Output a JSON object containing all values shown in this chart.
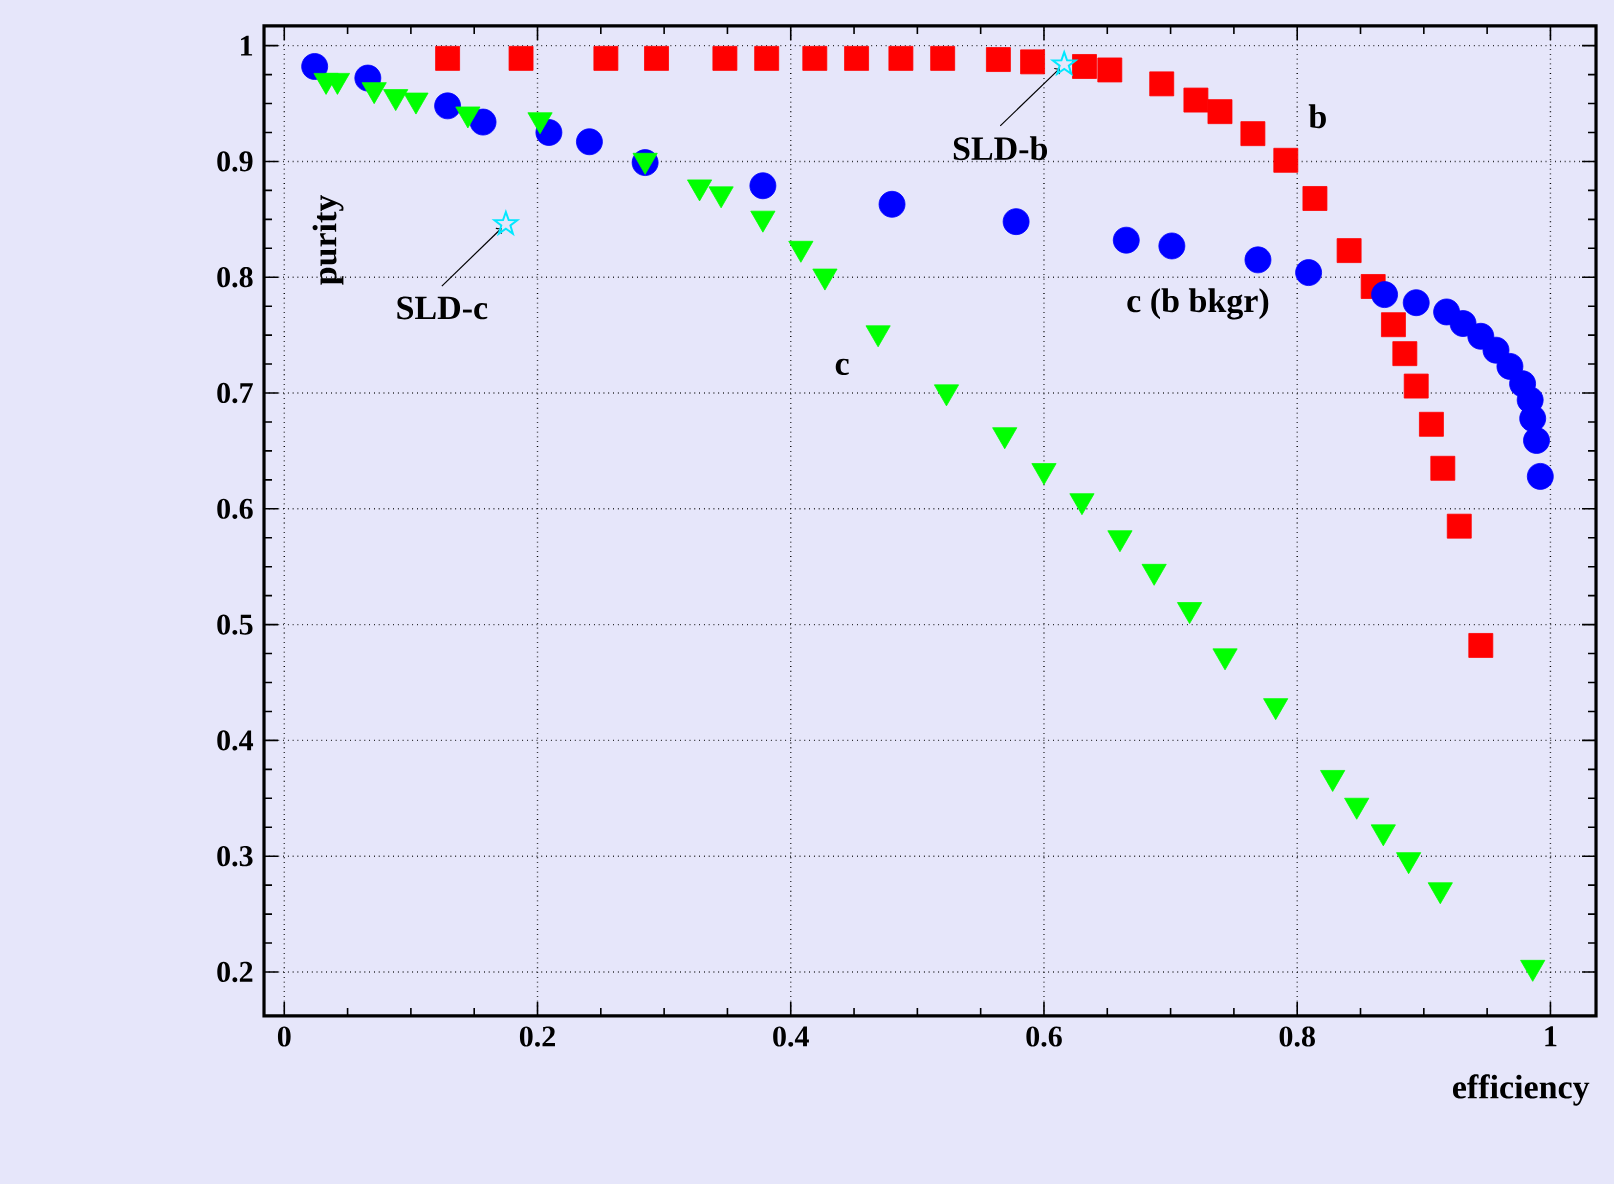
{
  "chart_data": {
    "type": "scatter",
    "xlabel": "efficiency",
    "ylabel": "purity",
    "xlim": [
      -0.016,
      1.036
    ],
    "ylim": [
      0.162,
      1.017
    ],
    "xticks": [
      0,
      0.2,
      0.4,
      0.6,
      0.8,
      1
    ],
    "yticks": [
      0.2,
      0.3,
      0.4,
      0.5,
      0.6,
      0.7,
      0.8,
      0.9,
      1
    ],
    "grid": true,
    "series": [
      {
        "name": "b",
        "color": "#ff0000",
        "marker": "square",
        "x": [
          0.129,
          0.187,
          0.254,
          0.294,
          0.348,
          0.381,
          0.419,
          0.452,
          0.487,
          0.52,
          0.564,
          0.591,
          0.632,
          0.652,
          0.693,
          0.72,
          0.739,
          0.765,
          0.791,
          0.814,
          0.841,
          0.86,
          0.876,
          0.885,
          0.894,
          0.906,
          0.915,
          0.928,
          0.945
        ],
        "values": [
          0.989,
          0.989,
          0.989,
          0.989,
          0.989,
          0.989,
          0.989,
          0.989,
          0.989,
          0.989,
          0.988,
          0.986,
          0.982,
          0.979,
          0.967,
          0.953,
          0.943,
          0.924,
          0.901,
          0.868,
          0.823,
          0.792,
          0.759,
          0.734,
          0.706,
          0.673,
          0.635,
          0.585,
          0.482
        ]
      },
      {
        "name": "c (b bkgr)",
        "color": "#0000ff",
        "marker": "circle",
        "x": [
          0.024,
          0.066,
          0.129,
          0.157,
          0.209,
          0.241,
          0.285,
          0.378,
          0.48,
          0.578,
          0.665,
          0.701,
          0.769,
          0.809,
          0.869,
          0.894,
          0.918,
          0.931,
          0.945,
          0.957,
          0.968,
          0.978,
          0.984,
          0.986,
          0.989,
          0.992
        ],
        "values": [
          0.982,
          0.972,
          0.948,
          0.934,
          0.925,
          0.917,
          0.899,
          0.879,
          0.863,
          0.848,
          0.832,
          0.827,
          0.815,
          0.804,
          0.785,
          0.778,
          0.77,
          0.76,
          0.749,
          0.737,
          0.723,
          0.708,
          0.694,
          0.678,
          0.659,
          0.628
        ]
      },
      {
        "name": "c",
        "color": "#00ff00",
        "marker": "triangle",
        "x": [
          0.033,
          0.042,
          0.071,
          0.088,
          0.104,
          0.145,
          0.202,
          0.285,
          0.328,
          0.345,
          0.378,
          0.408,
          0.427,
          0.469,
          0.523,
          0.569,
          0.6,
          0.63,
          0.66,
          0.687,
          0.715,
          0.743,
          0.783,
          0.828,
          0.847,
          0.868,
          0.888,
          0.913,
          0.986
        ],
        "values": [
          0.97,
          0.97,
          0.962,
          0.956,
          0.953,
          0.941,
          0.936,
          0.901,
          0.878,
          0.872,
          0.851,
          0.825,
          0.801,
          0.752,
          0.701,
          0.664,
          0.633,
          0.607,
          0.575,
          0.546,
          0.513,
          0.473,
          0.43,
          0.368,
          0.344,
          0.321,
          0.297,
          0.271,
          0.204
        ]
      },
      {
        "color": "#00e8ff",
        "marker": "star",
        "x": [
          0.616,
          0.175
        ],
        "values": [
          0.984,
          0.846
        ]
      }
    ],
    "annotations": [
      {
        "text": "SLD-b",
        "x": 0.616,
        "y": 0.984
      },
      {
        "text": "SLD-c",
        "x": 0.175,
        "y": 0.846
      }
    ]
  }
}
